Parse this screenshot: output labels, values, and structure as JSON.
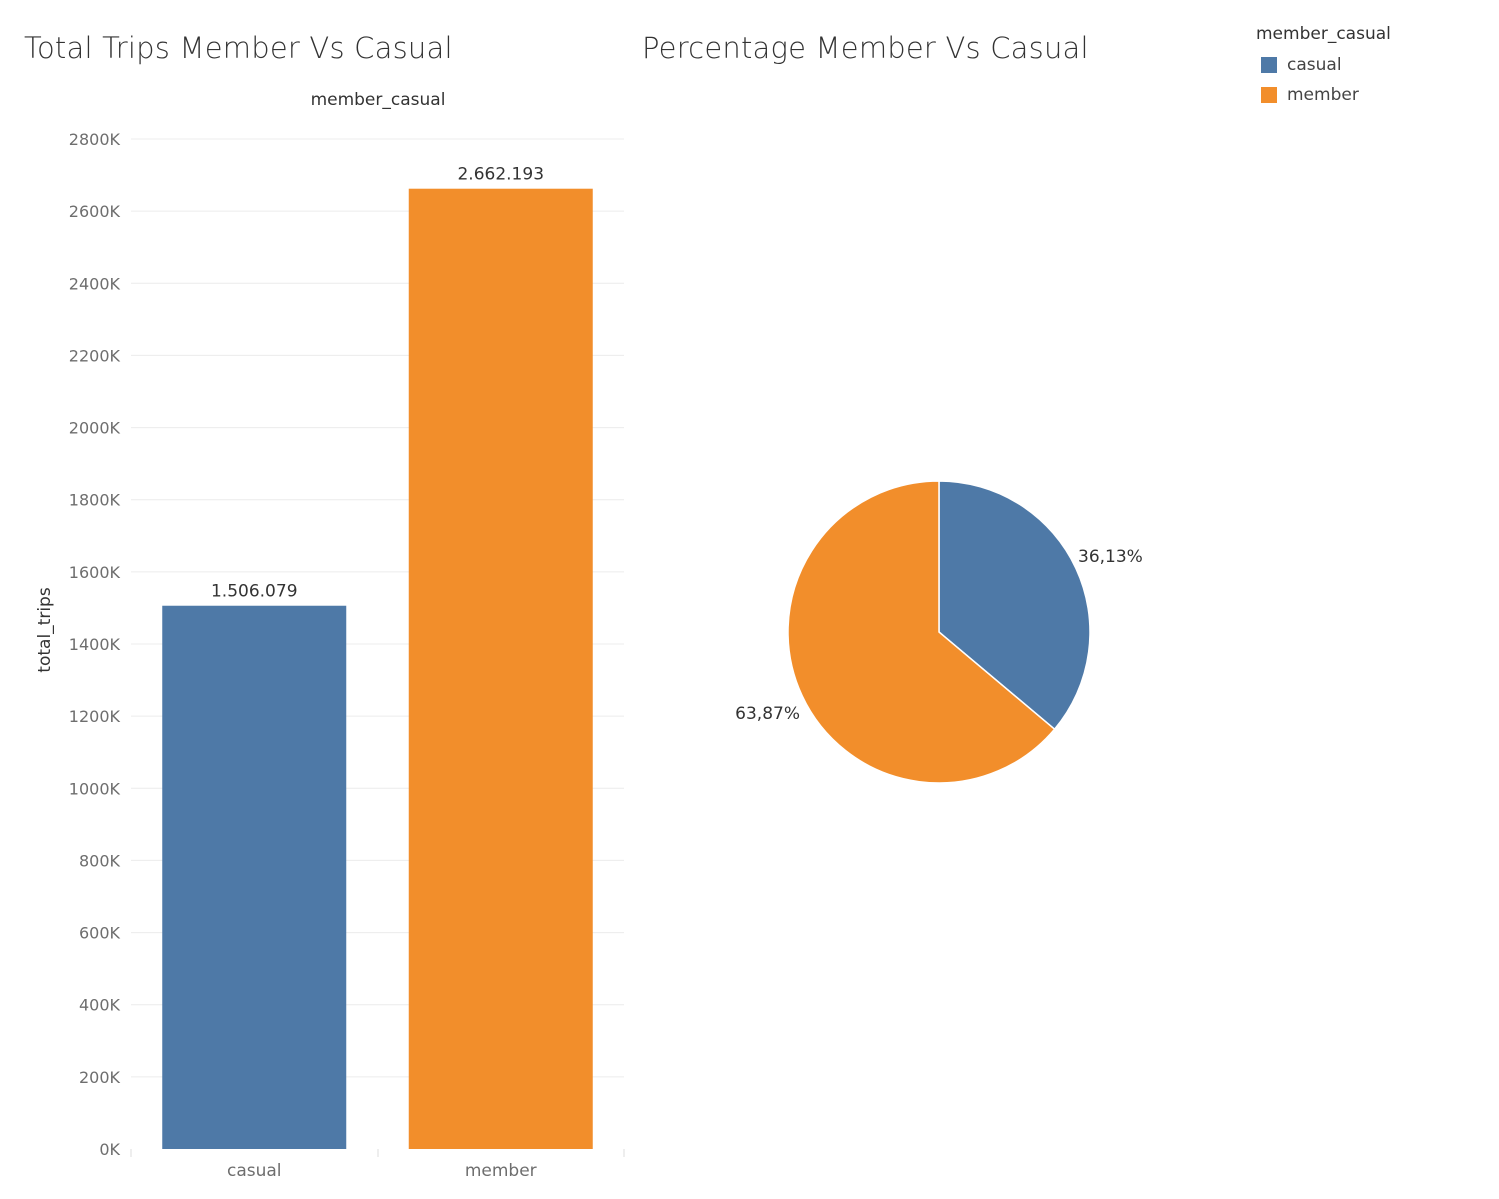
{
  "chart_data": [
    {
      "type": "bar",
      "title": "Total Trips Member Vs Casual",
      "header": "member_casual",
      "xlabel": "",
      "ylabel": "total_trips",
      "categories": [
        "casual",
        "member"
      ],
      "values": [
        1506079,
        2662193
      ],
      "data_labels": [
        "1.506.079",
        "2.662.193"
      ],
      "colors": [
        "#4e79a7",
        "#f28e2b"
      ],
      "ylim": [
        0,
        2800000
      ],
      "y_ticks": [
        0,
        200000,
        400000,
        600000,
        800000,
        1000000,
        1200000,
        1400000,
        1600000,
        1800000,
        2000000,
        2200000,
        2400000,
        2600000,
        2800000
      ],
      "y_tick_labels": [
        "0K",
        "200K",
        "400K",
        "600K",
        "800K",
        "1000K",
        "1200K",
        "1400K",
        "1600K",
        "1800K",
        "2000K",
        "2200K",
        "2400K",
        "2600K",
        "2800K"
      ],
      "grid": true
    },
    {
      "type": "pie",
      "title": "Percentage Member Vs Casual",
      "categories": [
        "casual",
        "member"
      ],
      "values": [
        36.13,
        63.87
      ],
      "data_labels": [
        "36,13%",
        "63,87%"
      ],
      "colors": [
        "#4e79a7",
        "#f28e2b"
      ]
    }
  ],
  "legend": {
    "title": "member_casual",
    "placement": "top-right",
    "items": [
      {
        "label": "casual",
        "color": "#4e79a7"
      },
      {
        "label": "member",
        "color": "#f28e2b"
      }
    ]
  }
}
